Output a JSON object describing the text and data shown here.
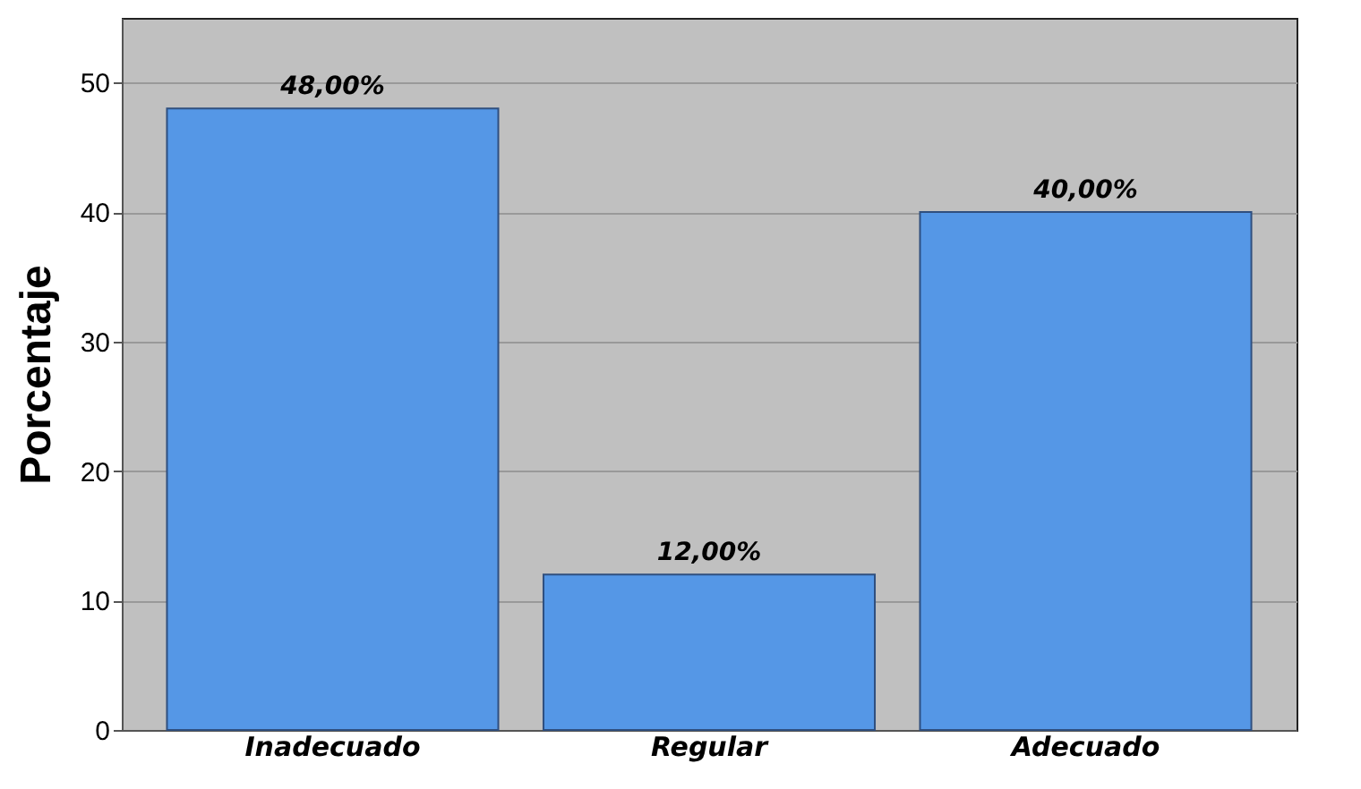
{
  "chart_data": {
    "type": "bar",
    "ylabel": "Porcentaje",
    "categories": [
      "Inadecuado",
      "Regular",
      "Adecuado"
    ],
    "values": [
      48,
      12,
      40
    ],
    "color": "#5597e6",
    "value_labels": [
      "48,00%",
      "12,00%",
      "40,00%"
    ],
    "ylim": [
      0,
      55
    ],
    "yticks": [
      0,
      10,
      20,
      30,
      40,
      50
    ],
    "grid": "y"
  }
}
